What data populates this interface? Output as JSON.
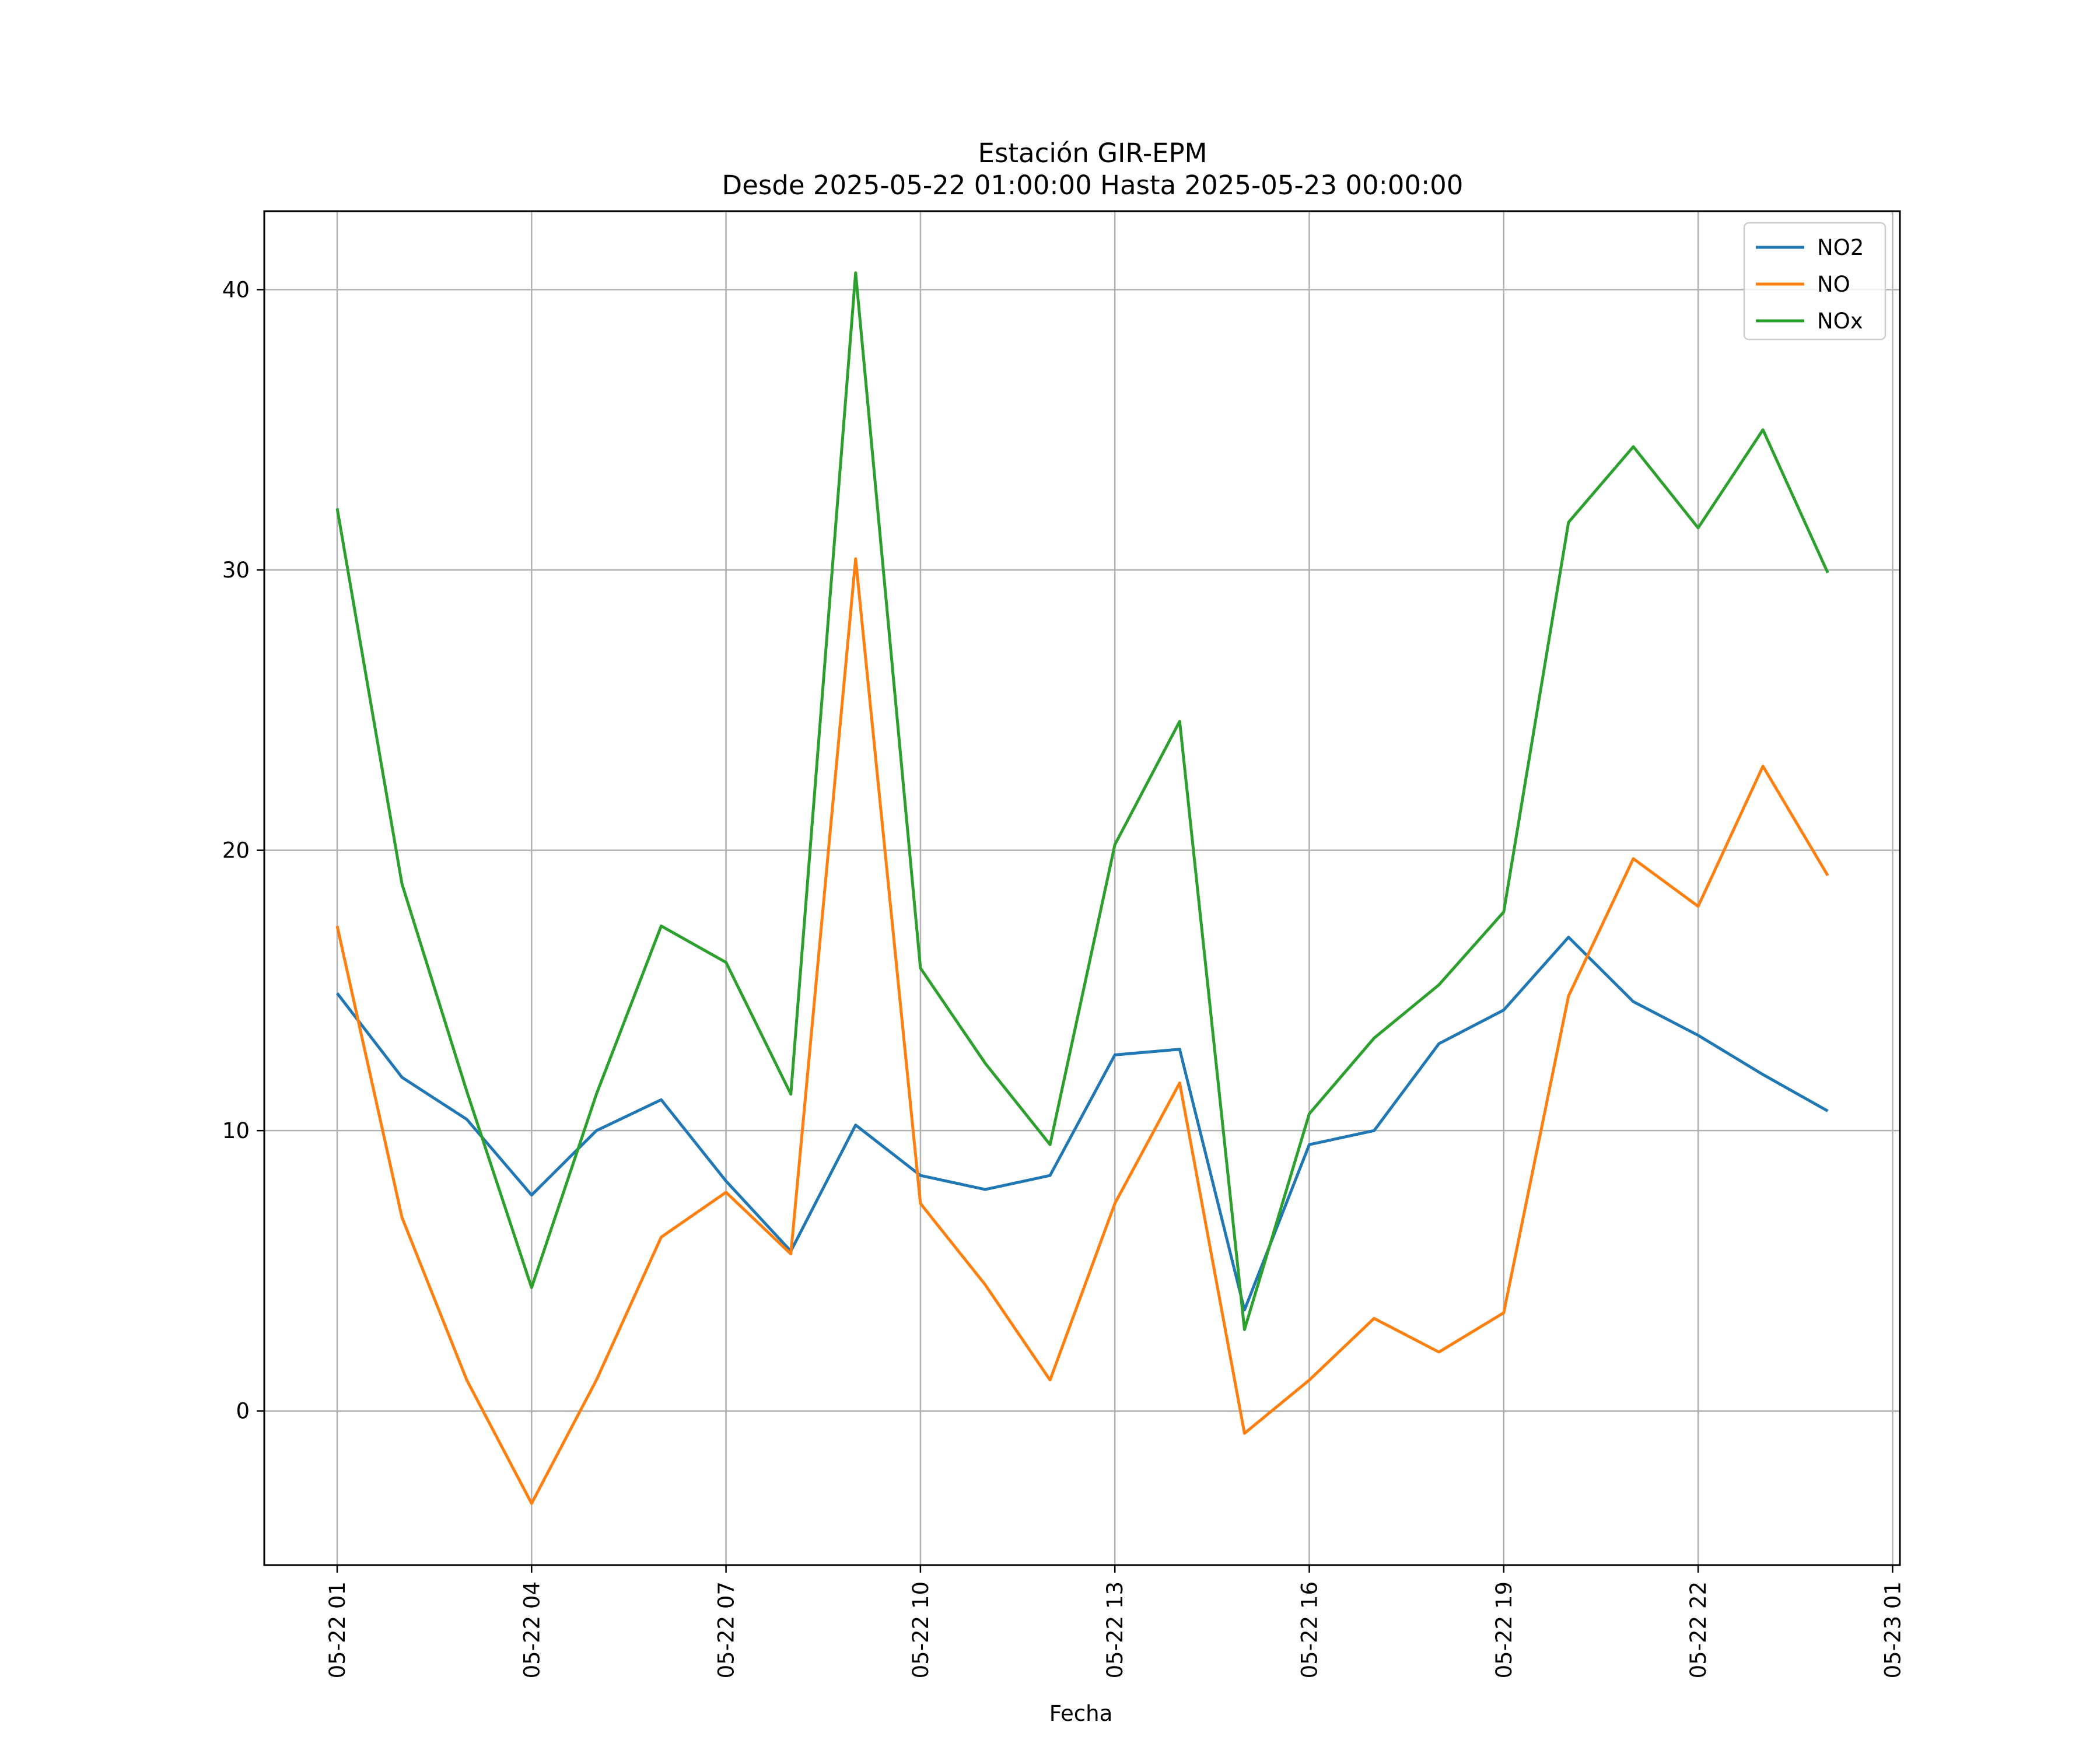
{
  "chart_data": {
    "type": "line",
    "title": "Estación GIR-EPM",
    "subtitle": "Desde 2025-05-22 01:00:00 Hasta 2025-05-23 00:00:00",
    "xlabel": "Fecha",
    "ylabel": "",
    "x": [
      "05-22 01",
      "05-22 02",
      "05-22 03",
      "05-22 04",
      "05-22 05",
      "05-22 06",
      "05-22 07",
      "05-22 08",
      "05-22 09",
      "05-22 10",
      "05-22 11",
      "05-22 12",
      "05-22 13",
      "05-22 14",
      "05-22 15",
      "05-22 16",
      "05-22 17",
      "05-22 18",
      "05-22 19",
      "05-22 20",
      "05-22 21",
      "05-22 22",
      "05-22 23",
      "05-23 00"
    ],
    "x_ticks": [
      "05-22 01",
      "05-22 04",
      "05-22 07",
      "05-22 10",
      "05-22 13",
      "05-22 16",
      "05-22 19",
      "05-22 22",
      "05-23 01"
    ],
    "xlim": [
      "05-22 00:00",
      "05-23 01:06"
    ],
    "ylim": [
      -5.5,
      42.8
    ],
    "y_ticks": [
      0,
      10,
      20,
      30,
      40
    ],
    "grid": true,
    "legend_position": "top-right",
    "series": [
      {
        "name": "NO2",
        "color": "#1f77b4",
        "values": [
          14.9,
          11.9,
          10.4,
          7.7,
          10.0,
          11.1,
          8.2,
          5.7,
          10.2,
          8.4,
          7.9,
          8.4,
          12.7,
          12.9,
          3.6,
          9.5,
          10.0,
          13.1,
          14.3,
          16.9,
          14.6,
          13.4,
          12.0,
          10.7
        ]
      },
      {
        "name": "NO",
        "color": "#ff7f0e",
        "values": [
          17.3,
          6.9,
          1.1,
          -3.3,
          1.1,
          6.2,
          7.8,
          5.6,
          30.4,
          7.4,
          4.5,
          1.1,
          7.4,
          11.7,
          -0.8,
          1.1,
          3.3,
          2.1,
          3.5,
          14.8,
          19.7,
          18.0,
          23.0,
          19.1
        ]
      },
      {
        "name": "NOx",
        "color": "#2ca02c",
        "values": [
          32.2,
          18.8,
          11.4,
          4.4,
          11.3,
          17.3,
          16.0,
          11.3,
          40.6,
          15.8,
          12.4,
          9.5,
          20.2,
          24.6,
          2.9,
          10.6,
          13.3,
          15.2,
          17.8,
          31.7,
          34.4,
          31.5,
          35.0,
          29.9
        ]
      }
    ]
  }
}
